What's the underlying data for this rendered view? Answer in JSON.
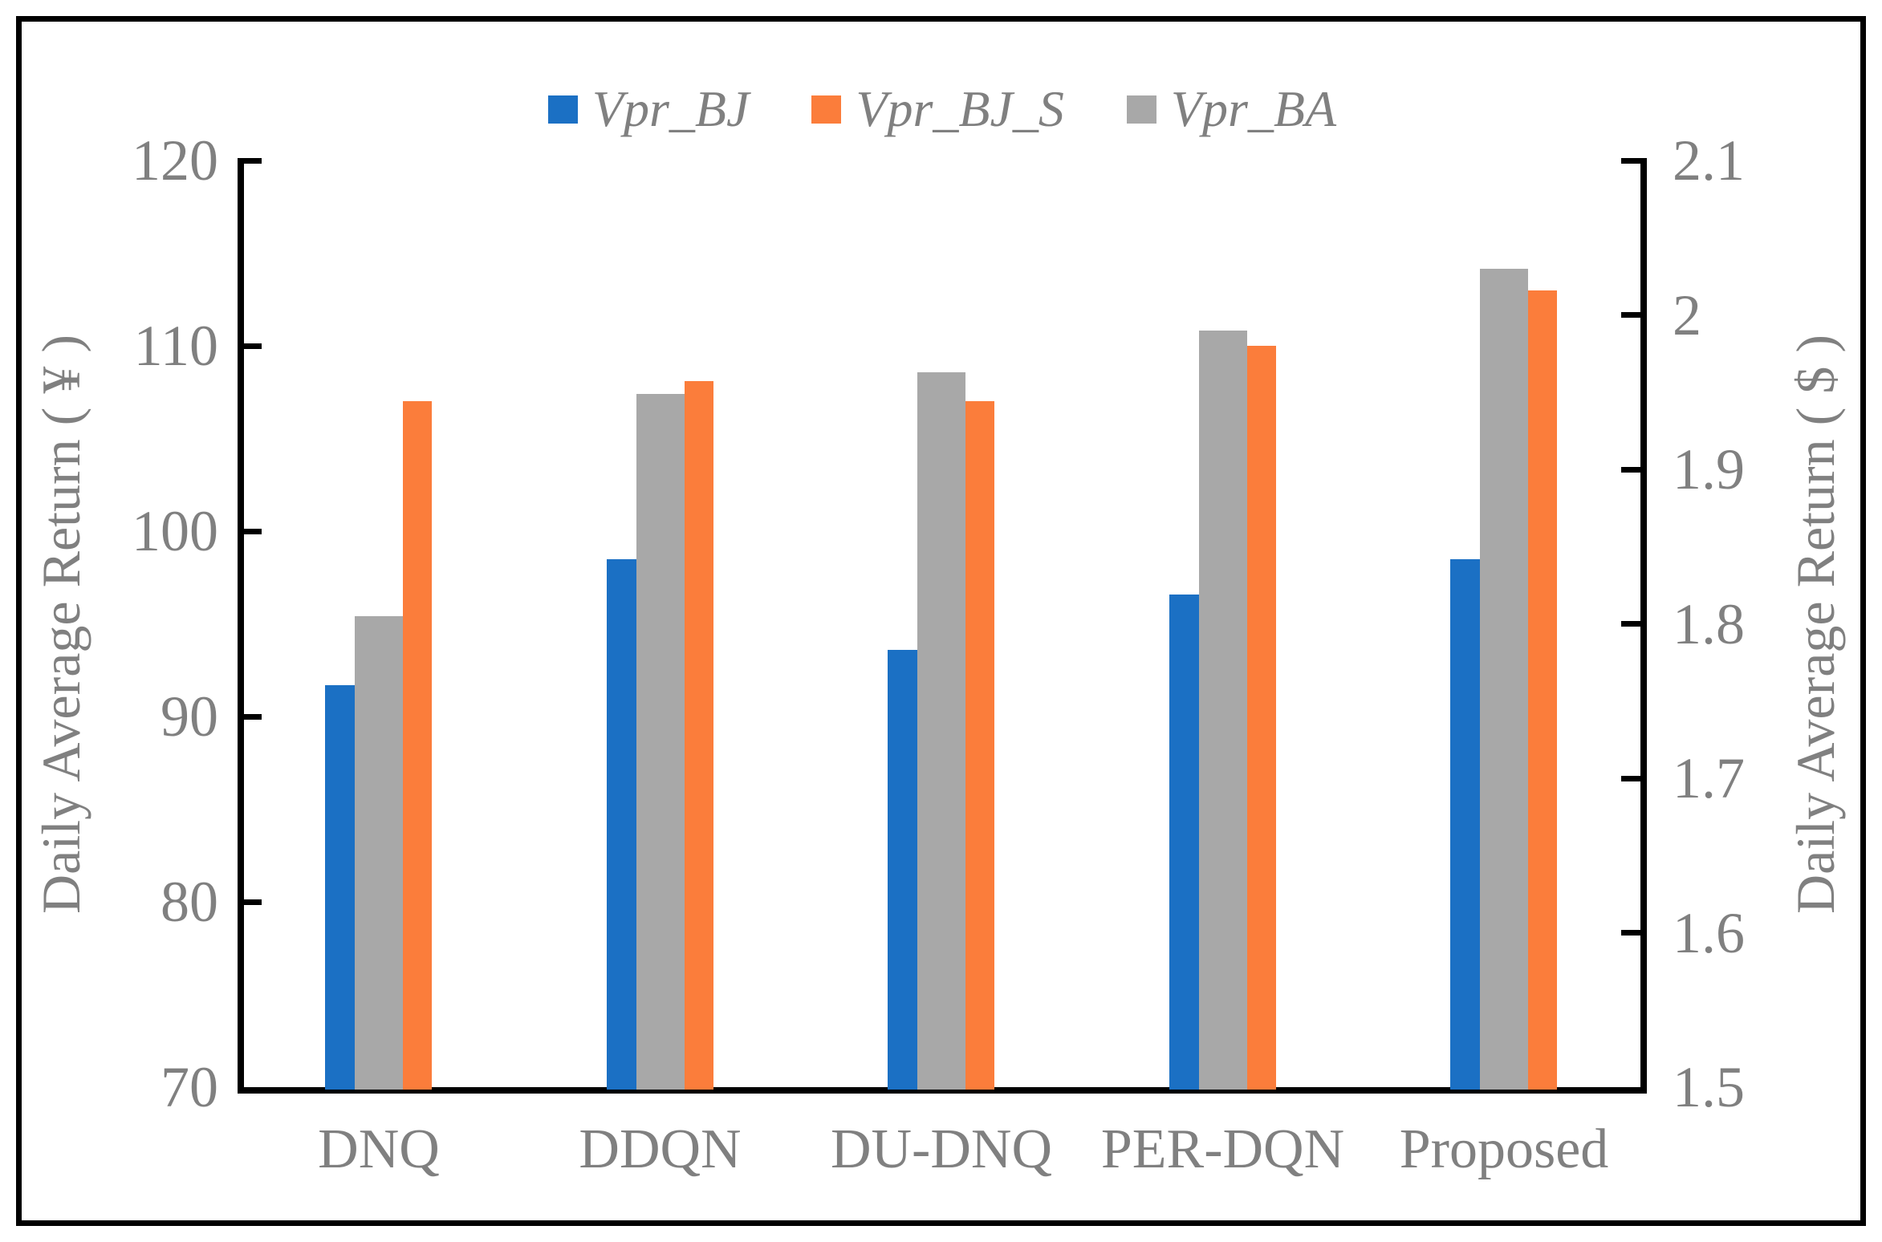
{
  "legend": {
    "items": [
      {
        "label": "Vpr_BJ",
        "color": "#1B70C4"
      },
      {
        "label": "Vpr_BJ_S",
        "color": "#FB7D3B"
      },
      {
        "label": "Vpr_BA",
        "color": "#A8A8A8"
      }
    ]
  },
  "chart_data": {
    "type": "bar",
    "subtype": "clustered-column-dual-axis",
    "categories": [
      "DNQ",
      "DDQN",
      "DU-DNQ",
      "PER-DQN",
      "Proposed"
    ],
    "series": [
      {
        "name": "Vpr_BJ",
        "axis": "left",
        "color": "#1B70C4",
        "values": [
          91.7,
          98.5,
          93.6,
          96.6,
          98.5
        ]
      },
      {
        "name": "Vpr_BJ_S",
        "axis": "left",
        "color": "#FB7D3B",
        "values": [
          107.0,
          108.1,
          107.0,
          110.0,
          113.0
        ]
      },
      {
        "name": "Vpr_BA",
        "axis": "right",
        "color": "#A8A8A8",
        "values": [
          1.805,
          1.949,
          1.963,
          1.99,
          2.03
        ]
      }
    ],
    "left_axis": {
      "title": "Daily Average Return ( ¥ )",
      "min": 70,
      "max": 120,
      "tick_labels": [
        "120",
        "110",
        "100",
        "90",
        "80",
        "70"
      ],
      "tick_values": [
        120,
        110,
        100,
        90,
        80,
        70
      ]
    },
    "right_axis": {
      "title": "Daily Average Return ( $ )",
      "min": 1.5,
      "max": 2.1,
      "tick_labels": [
        "2.1",
        "2",
        "1.9",
        "1.8",
        "1.7",
        "1.6",
        "1.5"
      ],
      "tick_values": [
        2.1,
        2.0,
        1.9,
        1.8,
        1.7,
        1.6,
        1.5
      ]
    },
    "legend_position": "top-center",
    "grid": false,
    "colors": {
      "axis_line": "#000000",
      "text": "#808080",
      "background": "#ffffff",
      "figure_border": "#000000"
    }
  }
}
